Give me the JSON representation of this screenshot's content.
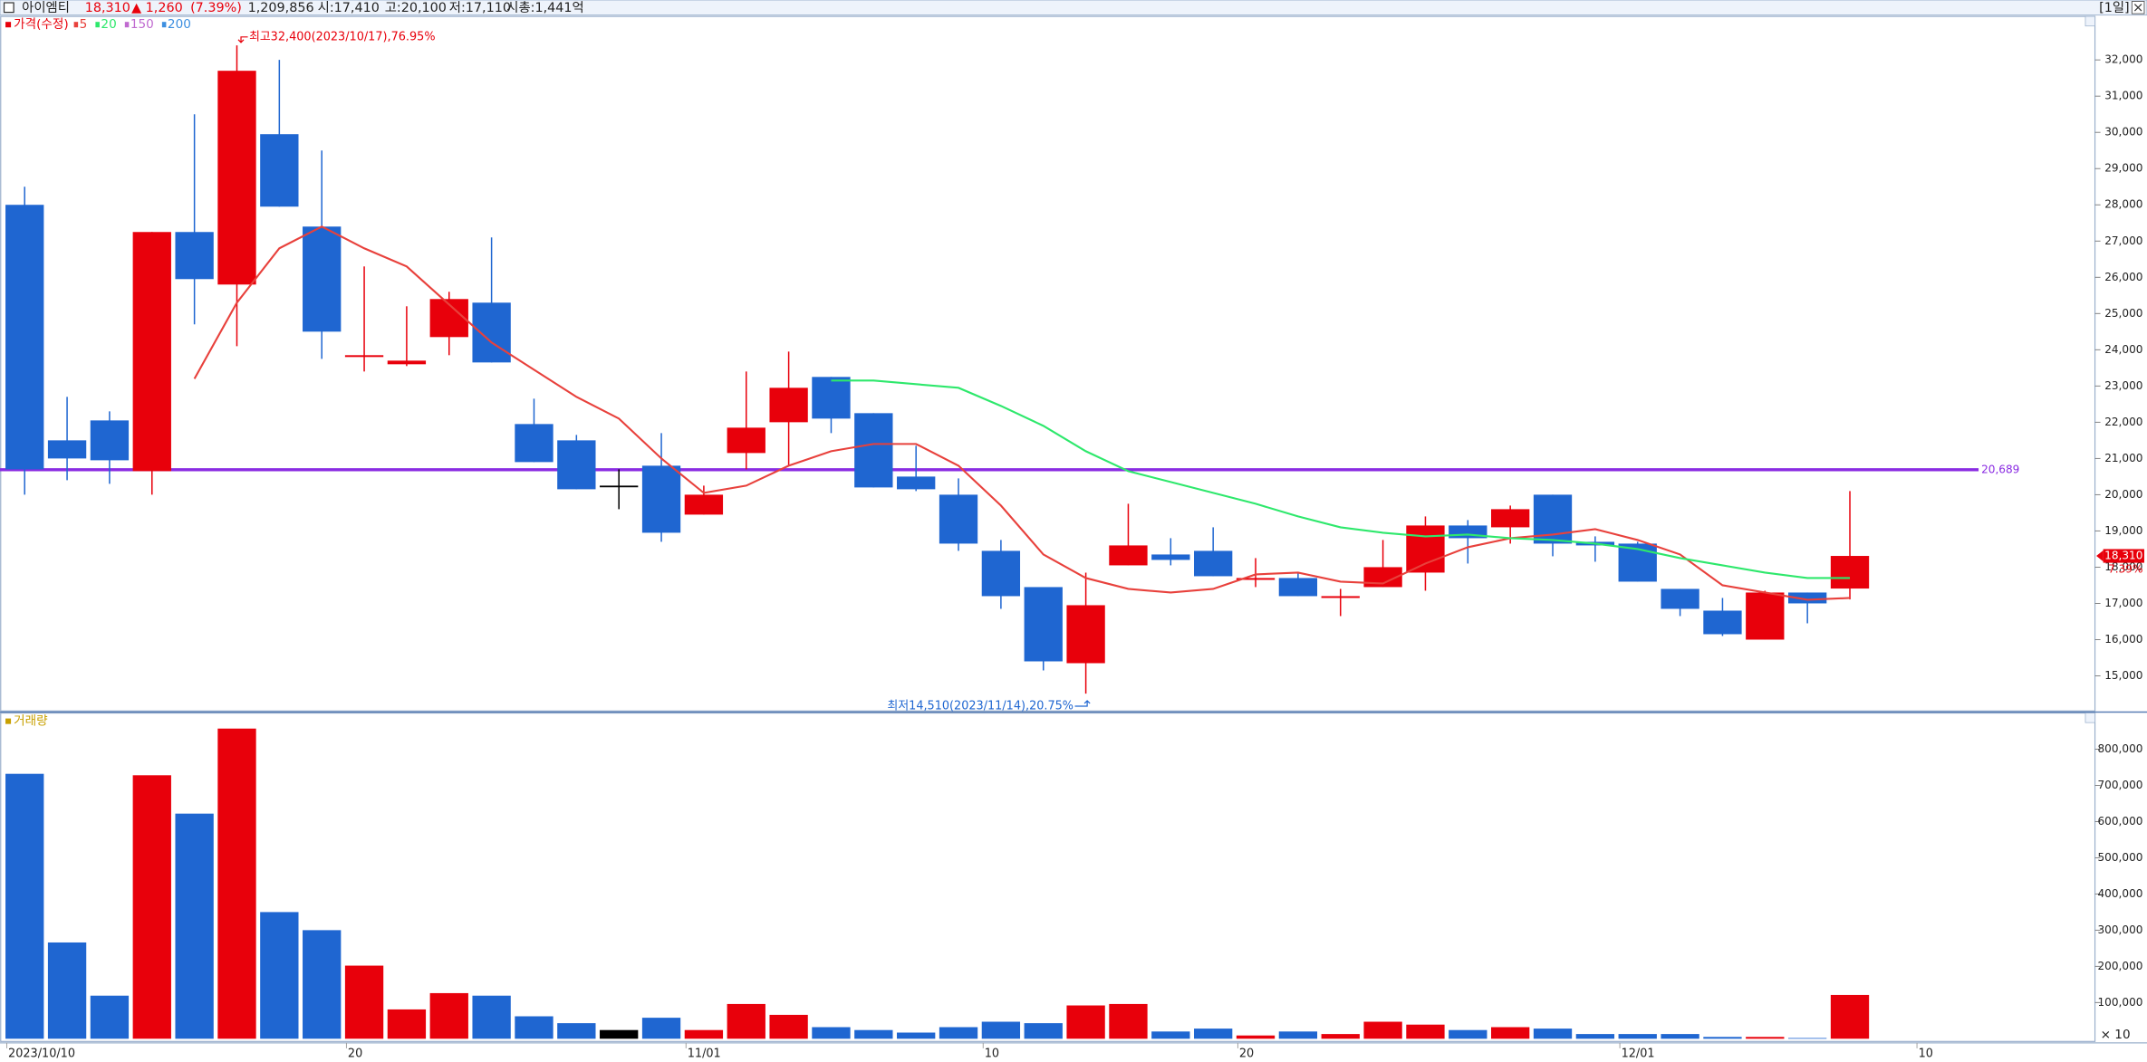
{
  "header": {
    "name": "아이엠티",
    "price": "18,310",
    "change": "▲ 1,260",
    "change_pct": "(7.39%)",
    "volume": "1,209,856",
    "open": "시:17,410",
    "high": "고:20,100",
    "low": "저:17,110",
    "market_cap": "시총:1,441억",
    "period": "[1일]"
  },
  "chart_data": [
    {
      "type": "candlestick",
      "title": "가격(수정)",
      "title_color": "#e8000b",
      "up_color": "#e8000b",
      "down_color": "#1f66d1",
      "flat_color": "#000000",
      "categories": [
        "2023/10/10",
        null,
        null,
        null,
        null,
        null,
        null,
        null,
        "20",
        null,
        null,
        null,
        null,
        null,
        null,
        null,
        "11/01",
        null,
        null,
        null,
        null,
        null,
        null,
        "10",
        null,
        null,
        null,
        null,
        null,
        "20",
        null,
        null,
        null,
        null,
        null,
        null,
        null,
        null,
        "12/01",
        null,
        null,
        null,
        null,
        null,
        null,
        "10"
      ],
      "open": [
        28000,
        21500,
        22050,
        20650,
        27250,
        25800,
        29950,
        27400,
        23800,
        23600,
        24350,
        25300,
        21950,
        21500,
        20250,
        20800,
        19450,
        21150,
        22000,
        23250,
        22250,
        20500,
        20000,
        18450,
        17450,
        15350,
        18050,
        18350,
        18450,
        17650,
        17700,
        17150,
        17450,
        17850,
        19150,
        19100,
        20000,
        18700,
        18650,
        17400,
        16800,
        16000,
        17300,
        17410,
        null,
        null
      ],
      "high": [
        28500,
        22700,
        22300,
        27250,
        30500,
        32400,
        32000,
        29500,
        26300,
        25200,
        25600,
        27100,
        22650,
        21650,
        20700,
        21700,
        20250,
        23400,
        23950,
        23250,
        22250,
        21350,
        20450,
        18750,
        17450,
        17850,
        19750,
        18800,
        19100,
        18250,
        17850,
        17400,
        18750,
        19400,
        19300,
        19700,
        20000,
        18850,
        18700,
        17400,
        17150,
        17350,
        17300,
        20100,
        null,
        null
      ],
      "low": [
        20000,
        20400,
        20300,
        20000,
        24700,
        24100,
        27950,
        23750,
        23400,
        23550,
        23850,
        23650,
        20900,
        20150,
        19600,
        18700,
        19450,
        20700,
        20800,
        21700,
        20200,
        20100,
        18450,
        16850,
        15150,
        14510,
        18050,
        18050,
        17750,
        17450,
        17200,
        16650,
        17450,
        17350,
        18100,
        18650,
        18300,
        18150,
        17600,
        16650,
        16100,
        16000,
        16450,
        17110,
        null,
        null
      ],
      "close": [
        20700,
        21000,
        20950,
        27250,
        25950,
        31700,
        27950,
        24500,
        23850,
        23700,
        25400,
        23650,
        20900,
        20150,
        20250,
        18950,
        20000,
        21850,
        22950,
        22100,
        20200,
        20150,
        18650,
        17200,
        15400,
        16950,
        18600,
        18200,
        17750,
        17700,
        17200,
        17200,
        18000,
        19150,
        18800,
        19600,
        18650,
        18600,
        17600,
        16850,
        16150,
        17300,
        17000,
        18310,
        null,
        null
      ],
      "series": [
        {
          "name": "5",
          "color": "#e8413c",
          "values": [
            null,
            null,
            null,
            null,
            23200,
            25300,
            26800,
            27400,
            26800,
            26300,
            25250,
            24200,
            23450,
            22700,
            22100,
            21000,
            20050,
            20250,
            20800,
            21200,
            21400,
            21400,
            20800,
            19700,
            18350,
            17700,
            17400,
            17300,
            17400,
            17800,
            17850,
            17600,
            17550,
            18100,
            18550,
            18800,
            18900,
            19050,
            18750,
            18350,
            17500,
            17300,
            17100,
            17150,
            null,
            null
          ]
        },
        {
          "name": "20",
          "color": "#2ee86c",
          "values": [
            null,
            null,
            null,
            null,
            null,
            null,
            null,
            null,
            null,
            null,
            null,
            null,
            null,
            null,
            null,
            null,
            null,
            null,
            null,
            23150,
            23150,
            23050,
            22950,
            22450,
            21900,
            21200,
            20650,
            20350,
            20050,
            19750,
            19400,
            19100,
            18950,
            18850,
            18900,
            18800,
            18750,
            18650,
            18500,
            18250,
            18050,
            17850,
            17700,
            17700,
            null,
            null
          ]
        }
      ],
      "legend_extra": [
        {
          "name": "150",
          "color": "#c06ad0"
        },
        {
          "name": "200",
          "color": "#3d8fe0"
        }
      ],
      "hline": {
        "value": 20689,
        "label": "20,689",
        "color": "#8a2be2"
      },
      "high_note": "최고32,400(2023/10/17),76.95%",
      "low_note": "최저14,510(2023/11/14),20.75%",
      "last_label": "18,310",
      "last_pct": "7.39%",
      "ylim": [
        14050,
        33200
      ],
      "yticks": [
        {
          "value": 15000,
          "label": "15,000"
        },
        {
          "value": 16000,
          "label": "16,000"
        },
        {
          "value": 17000,
          "label": "17,000"
        },
        {
          "value": 18000,
          "label": "18,000"
        },
        {
          "value": 19000,
          "label": "19,000"
        },
        {
          "value": 20000,
          "label": "20,000"
        },
        {
          "value": 21000,
          "label": "21,000"
        },
        {
          "value": 22000,
          "label": "22,000"
        },
        {
          "value": 23000,
          "label": "23,000"
        },
        {
          "value": 24000,
          "label": "24,000"
        },
        {
          "value": 25000,
          "label": "25,000"
        },
        {
          "value": 26000,
          "label": "26,000"
        },
        {
          "value": 27000,
          "label": "27,000"
        },
        {
          "value": 28000,
          "label": "28,000"
        },
        {
          "value": 29000,
          "label": "29,000"
        },
        {
          "value": 30000,
          "label": "30,000"
        },
        {
          "value": 31000,
          "label": "31,000"
        },
        {
          "value": 32000,
          "label": "32,000"
        }
      ],
      "grid": false
    },
    {
      "type": "bar",
      "title": "거래량",
      "title_color": "#c8a000",
      "unit_label": "× 10",
      "values": [
        732000,
        266000,
        119000,
        728000,
        622000,
        857000,
        350000,
        300000,
        202000,
        81000,
        126000,
        119000,
        62000,
        43000,
        24000,
        58000,
        24000,
        96000,
        66000,
        32000,
        24000,
        17000,
        32000,
        47000,
        43000,
        92000,
        96000,
        20000,
        28000,
        9000,
        20000,
        13000,
        47000,
        39000,
        24000,
        32000,
        28000,
        13000,
        13000,
        13000,
        5000,
        5000,
        2000,
        120986,
        null,
        null
      ],
      "ylim": [
        0,
        900000
      ],
      "yticks": [
        {
          "value": 100000,
          "label": "100,000"
        },
        {
          "value": 200000,
          "label": "200,000"
        },
        {
          "value": 300000,
          "label": "300,000"
        },
        {
          "value": 400000,
          "label": "400,000"
        },
        {
          "value": 500000,
          "label": "500,000"
        },
        {
          "value": 600000,
          "label": "600,000"
        },
        {
          "value": 700000,
          "label": "700,000"
        },
        {
          "value": 800000,
          "label": "800,000"
        }
      ],
      "grid": false
    }
  ]
}
